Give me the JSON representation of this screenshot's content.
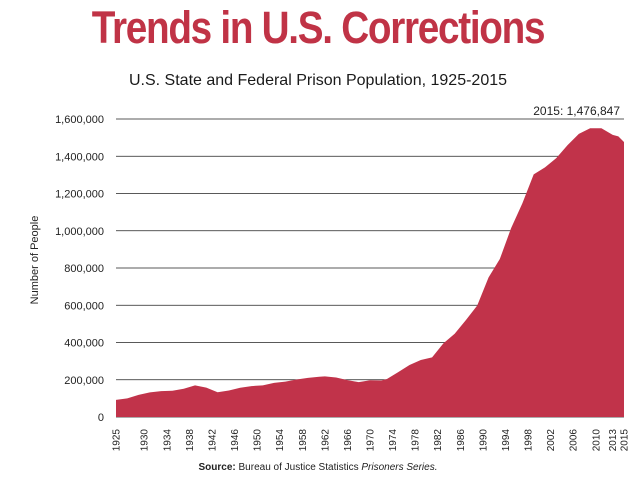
{
  "headline": "Trends in U.S. Corrections",
  "source": {
    "label": "Source:",
    "text": "Bureau of Justice Statistics",
    "italic": "Prisoners Series."
  },
  "colors": {
    "accent": "#c03346",
    "fill": "#c1334a",
    "grid": "#222222"
  },
  "chart_data": {
    "type": "area",
    "title": "U.S. State and Federal Prison Population, 1925-2015",
    "xlabel": "",
    "ylabel": "Number of People",
    "ylim": [
      0,
      1600000
    ],
    "yticks": [
      0,
      200000,
      400000,
      600000,
      800000,
      1000000,
      1200000,
      1400000,
      1600000
    ],
    "ytick_labels": [
      "0",
      "200,000",
      "400,000",
      "600,000",
      "800,000",
      "1,000,000",
      "1,200,000",
      "1,400,000",
      "1,600,000"
    ],
    "xlim": [
      1925,
      2015
    ],
    "xticks": [
      1925,
      1930,
      1934,
      1938,
      1942,
      1946,
      1950,
      1954,
      1958,
      1962,
      1966,
      1970,
      1974,
      1978,
      1982,
      1986,
      1990,
      1994,
      1998,
      2002,
      2006,
      2010,
      2013,
      2015
    ],
    "grid": true,
    "annotation": {
      "text": "2015: 1,476,847",
      "x": 2015,
      "y": 1476847
    },
    "x": [
      1925,
      1927,
      1929,
      1931,
      1933,
      1935,
      1937,
      1939,
      1941,
      1943,
      1945,
      1947,
      1949,
      1951,
      1953,
      1955,
      1957,
      1959,
      1961,
      1962,
      1964,
      1966,
      1968,
      1970,
      1972,
      1973,
      1975,
      1977,
      1979,
      1981,
      1983,
      1985,
      1987,
      1989,
      1991,
      1993,
      1995,
      1997,
      1999,
      2001,
      2003,
      2005,
      2007,
      2009,
      2011,
      2013,
      2014,
      2015
    ],
    "values": [
      92000,
      100000,
      119000,
      132000,
      139000,
      141000,
      152000,
      170000,
      158000,
      133000,
      142000,
      157000,
      166000,
      170000,
      183000,
      190000,
      201000,
      210000,
      216000,
      218000,
      212000,
      198000,
      187000,
      197000,
      196000,
      204000,
      241000,
      279000,
      306000,
      320000,
      395000,
      447000,
      521000,
      599000,
      749000,
      848000,
      1014000,
      1148000,
      1303000,
      1340000,
      1390000,
      1460000,
      1520000,
      1550000,
      1550000,
      1515000,
      1507000,
      1476847
    ]
  }
}
